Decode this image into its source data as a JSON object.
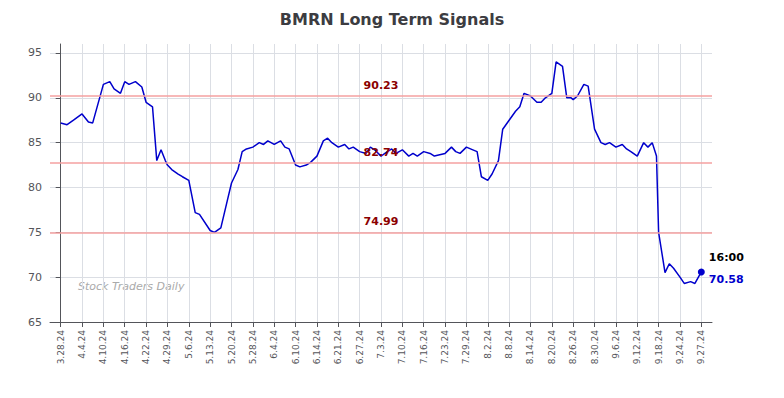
{
  "chart_data": {
    "type": "line",
    "title": "BMRN Long Term Signals",
    "color": "#0000cc",
    "x": [
      0.0,
      0.3,
      0.6,
      1.0,
      1.3,
      1.5,
      2.0,
      2.3,
      2.5,
      2.8,
      3.0,
      3.2,
      3.5,
      3.8,
      4.0,
      4.3,
      4.5,
      4.7,
      4.9,
      5.0,
      5.2,
      5.5,
      5.7,
      6.0,
      6.3,
      6.5,
      7.0,
      7.2,
      7.5,
      7.8,
      8.0,
      8.3,
      8.5,
      8.7,
      9.0,
      9.3,
      9.5,
      9.7,
      10.0,
      10.3,
      10.5,
      10.7,
      11.0,
      11.2,
      11.5,
      11.7,
      12.0,
      12.3,
      12.5,
      12.7,
      13.0,
      13.3,
      13.5,
      13.7,
      14.0,
      14.3,
      14.5,
      14.7,
      15.0,
      15.3,
      15.5,
      15.7,
      16.0,
      16.3,
      16.5,
      16.7,
      17.0,
      17.3,
      17.5,
      18.0,
      18.3,
      18.5,
      18.7,
      19.0,
      19.3,
      19.5,
      19.7,
      20.0,
      20.2,
      20.5,
      20.7,
      21.0,
      21.3,
      21.5,
      21.7,
      22.0,
      22.3,
      22.5,
      22.7,
      23.0,
      23.2,
      23.5,
      23.7,
      23.9,
      24.0,
      24.2,
      24.5,
      24.7,
      25.0,
      25.3,
      25.5,
      25.7,
      26.0,
      26.3,
      26.5,
      26.7,
      27.0,
      27.3,
      27.5,
      27.7,
      27.9,
      28.0,
      28.3,
      28.5,
      28.7,
      29.0,
      29.2,
      29.5,
      29.7,
      30.0
    ],
    "values": [
      87.2,
      87.0,
      87.5,
      88.2,
      87.3,
      87.2,
      91.5,
      91.8,
      91.0,
      90.5,
      91.8,
      91.5,
      91.8,
      91.2,
      89.5,
      89.0,
      83.0,
      84.2,
      83.0,
      82.5,
      82.0,
      81.5,
      81.2,
      80.8,
      77.2,
      77.0,
      75.2,
      74.99,
      75.5,
      78.5,
      80.5,
      82.0,
      84.0,
      84.3,
      84.5,
      85.0,
      84.8,
      85.2,
      84.8,
      85.2,
      84.5,
      84.3,
      82.5,
      82.3,
      82.5,
      82.8,
      83.5,
      85.2,
      85.5,
      85.0,
      84.5,
      84.8,
      84.3,
      84.5,
      84.0,
      83.8,
      84.5,
      84.2,
      83.5,
      84.0,
      84.3,
      83.8,
      84.2,
      83.5,
      83.8,
      83.5,
      84.0,
      83.8,
      83.5,
      83.8,
      84.5,
      84.0,
      83.8,
      84.5,
      84.2,
      84.0,
      81.2,
      80.8,
      81.5,
      83.0,
      86.5,
      87.5,
      88.5,
      89.0,
      90.5,
      90.2,
      89.5,
      89.5,
      90.0,
      90.5,
      94.0,
      93.5,
      90.0,
      90.0,
      89.8,
      90.2,
      91.5,
      91.3,
      86.5,
      85.0,
      84.8,
      85.0,
      84.5,
      84.8,
      84.3,
      84.0,
      83.5,
      85.0,
      84.5,
      85.0,
      83.5,
      75.0,
      70.5,
      71.5,
      71.0,
      70.0,
      69.3,
      69.5,
      69.3,
      70.58
    ],
    "xlim": [
      -0.5,
      30.5
    ],
    "xticks": [
      {
        "value": 0,
        "label": "3.28.24"
      },
      {
        "value": 1,
        "label": "4.4.24"
      },
      {
        "value": 2,
        "label": "4.10.24"
      },
      {
        "value": 3,
        "label": "4.16.24"
      },
      {
        "value": 4,
        "label": "4.22.24"
      },
      {
        "value": 5,
        "label": "4.29.24"
      },
      {
        "value": 6,
        "label": "5.6.24"
      },
      {
        "value": 7,
        "label": "5.13.24"
      },
      {
        "value": 8,
        "label": "5.20.24"
      },
      {
        "value": 9,
        "label": "5.28.24"
      },
      {
        "value": 10,
        "label": "6.4.24"
      },
      {
        "value": 11,
        "label": "6.10.24"
      },
      {
        "value": 12,
        "label": "6.14.24"
      },
      {
        "value": 13,
        "label": "6.21.24"
      },
      {
        "value": 14,
        "label": "6.27.24"
      },
      {
        "value": 15,
        "label": "7.3.24"
      },
      {
        "value": 16,
        "label": "7.10.24"
      },
      {
        "value": 17,
        "label": "7.16.24"
      },
      {
        "value": 18,
        "label": "7.23.24"
      },
      {
        "value": 19,
        "label": "7.29.24"
      },
      {
        "value": 20,
        "label": "8.2.24"
      },
      {
        "value": 21,
        "label": "8.8.24"
      },
      {
        "value": 22,
        "label": "8.14.24"
      },
      {
        "value": 23,
        "label": "8.20.24"
      },
      {
        "value": 24,
        "label": "8.26.24"
      },
      {
        "value": 25,
        "label": "8.30.24"
      },
      {
        "value": 26,
        "label": "9.6.24"
      },
      {
        "value": 27,
        "label": "9.12.24"
      },
      {
        "value": 28,
        "label": "9.18.24"
      },
      {
        "value": 29,
        "label": "9.24.24"
      },
      {
        "value": 30,
        "label": "9.27.24"
      }
    ],
    "ylim": [
      65,
      96
    ],
    "yticks": [
      65,
      70,
      75,
      80,
      85,
      90,
      95
    ],
    "grid": true,
    "hlines": {
      "values": [
        90.23,
        82.74,
        74.99
      ],
      "color": "#f4a0a0",
      "label_color": "#8b0000"
    },
    "annotations": [
      {
        "text": "16:00",
        "x": 30.0,
        "y": 70.58,
        "color": "#000000"
      },
      {
        "text": "70.58",
        "x": 30.0,
        "y": 70.58,
        "color": "#0000cc"
      },
      {
        "text": "Stock Traders Daily",
        "color": "#aaaaaa"
      }
    ]
  }
}
